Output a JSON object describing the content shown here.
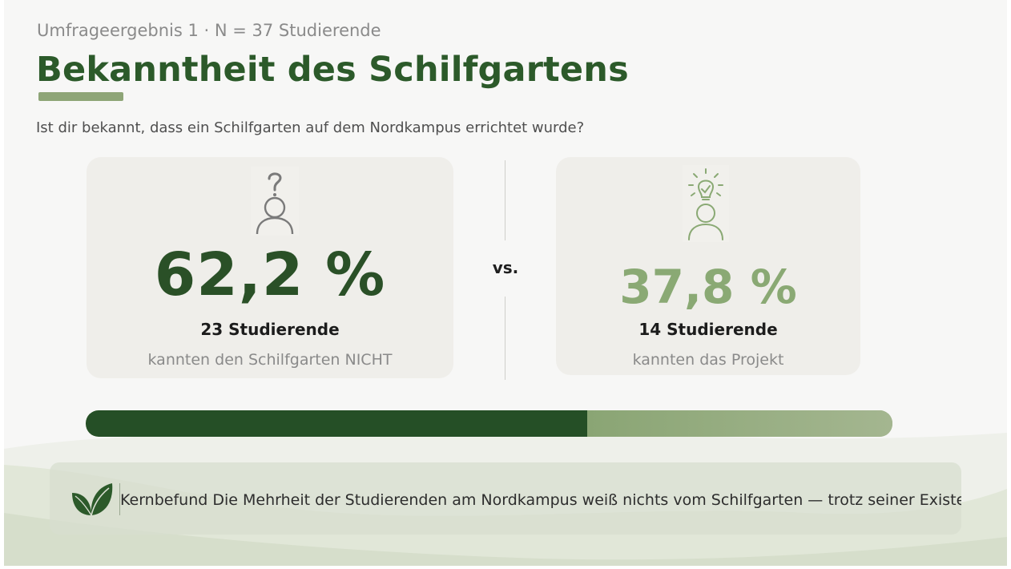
{
  "header": {
    "kicker": "Umfrageergebnis 1 · N = 37 Studierende",
    "title": "Bekanntheit des Schilfgartens",
    "question": "Ist dir bekannt, dass ein Schilfgarten auf dem Nordkampus errichtet wurde?"
  },
  "cards": {
    "left": {
      "icon": "person-question-icon",
      "percent": "62,2 %",
      "count": "23 Studierende",
      "caption": "kannten den Schilfgarten NICHT"
    },
    "right": {
      "icon": "person-lightbulb-icon",
      "percent": "37,8 %",
      "count": "14 Studierende",
      "caption": "kannten das Projekt"
    },
    "vs_label": "vs."
  },
  "bar": {
    "segments": [
      {
        "name": "not-known",
        "fraction": 0.622,
        "color": "#254f26"
      },
      {
        "name": "known",
        "fraction": 0.378,
        "color": "#9cb087"
      }
    ]
  },
  "finding": {
    "icon": "leaf-icon",
    "text": "Kernbefund Die Mehrheit der Studierenden am Nordkampus weiß nichts vom Schilfgarten — trotz seiner Existen"
  },
  "colors": {
    "title": "#2c5a2a",
    "accent_dark": "#2a5027",
    "accent_light": "#8aa974",
    "card_bg": "#efeeea"
  }
}
